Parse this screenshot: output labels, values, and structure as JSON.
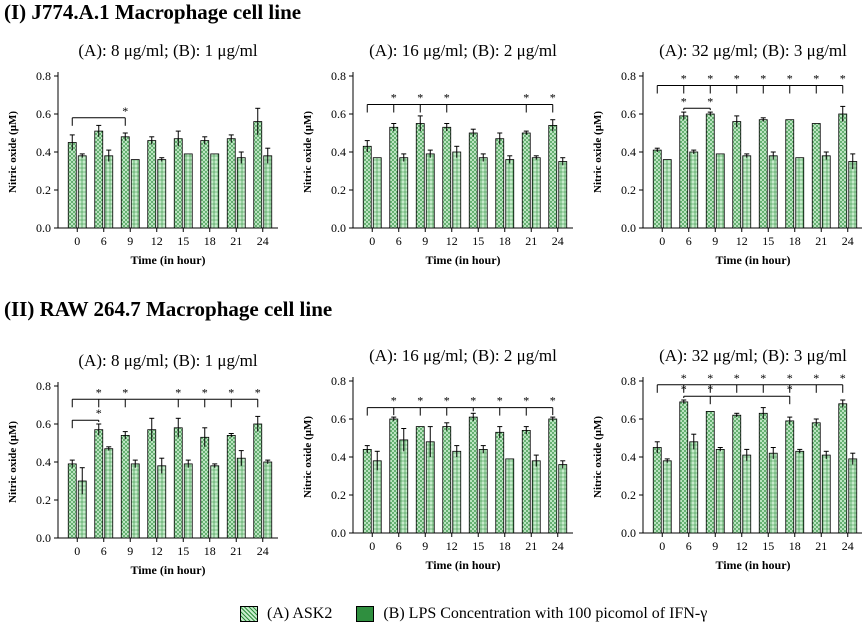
{
  "sections": [
    {
      "title": "(I) J774.A.1 Macrophage cell line"
    },
    {
      "title": "(II) RAW 264.7 Macrophage cell line"
    }
  ],
  "legend": {
    "a_label": "(A) ASK2",
    "b_label": "(B) LPS Concentration with 100 picomol of IFN-γ"
  },
  "colors": {
    "bar_fill": "#c6eccb",
    "grid_line": "#2f8f3f",
    "axis": "#000000"
  },
  "chart_data": [
    {
      "type": "bar",
      "title": "(A): 8 μg/ml; (B): 1 μg/ml",
      "xlabel": "Time (in hour)",
      "ylabel": "Nitric oxide (μM)",
      "categories": [
        "0",
        "6",
        "9",
        "12",
        "15",
        "18",
        "21",
        "24"
      ],
      "ylim": [
        0,
        0.8
      ],
      "yticks": [
        "0.0",
        "0.2",
        "0.4",
        "0.6",
        "0.8"
      ],
      "series": [
        {
          "name": "(A) ASK2",
          "values": [
            0.45,
            0.51,
            0.48,
            0.46,
            0.47,
            0.46,
            0.47,
            0.56
          ],
          "errors": [
            0.04,
            0.03,
            0.02,
            0.02,
            0.04,
            0.02,
            0.02,
            0.07
          ]
        },
        {
          "name": "(B) LPS",
          "values": [
            0.38,
            0.38,
            0.36,
            0.36,
            0.39,
            0.39,
            0.37,
            0.38
          ],
          "errors": [
            0.01,
            0.03,
            0.0,
            0.01,
            0.0,
            0.0,
            0.03,
            0.04
          ]
        }
      ],
      "brackets": [
        {
          "line": 0.58,
          "from": 0,
          "to": [
            2
          ],
          "stars": [
            2
          ]
        }
      ]
    },
    {
      "type": "bar",
      "title": "(A): 16 μg/ml; (B): 2 μg/ml",
      "xlabel": "Time (in hour)",
      "ylabel": "Nitric oxide (μM)",
      "categories": [
        "0",
        "6",
        "9",
        "12",
        "15",
        "18",
        "21",
        "24"
      ],
      "ylim": [
        0,
        0.8
      ],
      "yticks": [
        "0.0",
        "0.2",
        "0.4",
        "0.6",
        "0.8"
      ],
      "series": [
        {
          "name": "(A) ASK2",
          "values": [
            0.43,
            0.53,
            0.55,
            0.53,
            0.5,
            0.47,
            0.5,
            0.54
          ],
          "errors": [
            0.03,
            0.02,
            0.04,
            0.02,
            0.02,
            0.03,
            0.01,
            0.03
          ]
        },
        {
          "name": "(B) LPS",
          "values": [
            0.37,
            0.37,
            0.39,
            0.4,
            0.37,
            0.36,
            0.37,
            0.35
          ],
          "errors": [
            0.0,
            0.02,
            0.02,
            0.03,
            0.02,
            0.02,
            0.01,
            0.02
          ]
        }
      ],
      "brackets": [
        {
          "line": 0.65,
          "from": 0,
          "to": [
            1,
            2,
            3,
            6,
            7
          ],
          "stars": [
            1,
            2,
            3,
            6,
            7
          ]
        }
      ]
    },
    {
      "type": "bar",
      "title": "(A): 32 μg/ml; (B): 3 μg/ml",
      "xlabel": "Time (in hour)",
      "ylabel": "Nitric oxide (μM)",
      "categories": [
        "0",
        "6",
        "9",
        "12",
        "15",
        "18",
        "21",
        "24"
      ],
      "ylim": [
        0,
        0.8
      ],
      "yticks": [
        "0.0",
        "0.2",
        "0.4",
        "0.6",
        "0.8"
      ],
      "series": [
        {
          "name": "(A) ASK2",
          "values": [
            0.41,
            0.59,
            0.6,
            0.56,
            0.57,
            0.57,
            0.55,
            0.6
          ],
          "errors": [
            0.01,
            0.02,
            0.01,
            0.03,
            0.01,
            0.0,
            0.0,
            0.04
          ]
        },
        {
          "name": "(B) LPS",
          "values": [
            0.36,
            0.4,
            0.39,
            0.38,
            0.38,
            0.37,
            0.38,
            0.35
          ],
          "errors": [
            0.0,
            0.01,
            0.0,
            0.01,
            0.02,
            0.0,
            0.02,
            0.04
          ]
        }
      ],
      "brackets": [
        {
          "line": 0.75,
          "from": 0,
          "to": [
            1,
            2,
            3,
            4,
            5,
            6,
            7
          ],
          "stars": [
            1,
            2,
            3,
            4,
            5,
            6,
            7
          ]
        },
        {
          "line": 0.63,
          "from": 1,
          "to": [
            2
          ],
          "stars": [
            1,
            2
          ]
        }
      ]
    },
    {
      "type": "bar",
      "title": "(A): 8 μg/ml; (B): 1 μg/ml",
      "xlabel": "Time (in hour)",
      "ylabel": "Nitric oxide (μM)",
      "categories": [
        "0",
        "6",
        "9",
        "12",
        "15",
        "18",
        "21",
        "24"
      ],
      "ylim": [
        0,
        0.8
      ],
      "yticks": [
        "0.0",
        "0.2",
        "0.4",
        "0.6",
        "0.8"
      ],
      "series": [
        {
          "name": "(A) ASK2",
          "values": [
            0.39,
            0.57,
            0.54,
            0.57,
            0.58,
            0.53,
            0.54,
            0.6
          ],
          "errors": [
            0.02,
            0.03,
            0.02,
            0.06,
            0.05,
            0.05,
            0.01,
            0.04
          ]
        },
        {
          "name": "(B) LPS",
          "values": [
            0.3,
            0.47,
            0.39,
            0.38,
            0.39,
            0.38,
            0.42,
            0.4
          ],
          "errors": [
            0.07,
            0.01,
            0.02,
            0.04,
            0.02,
            0.01,
            0.04,
            0.01
          ]
        }
      ],
      "brackets": [
        {
          "line": 0.73,
          "from": 0,
          "to": [
            1,
            2,
            4,
            5,
            6,
            7
          ],
          "stars": [
            1,
            2,
            4,
            5,
            6,
            7
          ]
        },
        {
          "line": 0.62,
          "from": 0,
          "to": [
            1
          ],
          "stars": [
            1
          ]
        }
      ]
    },
    {
      "type": "bar",
      "title": "(A): 16 μg/ml; (B): 2 μg/ml",
      "xlabel": "Time (in hour)",
      "ylabel": "Nitric oxide (μM)",
      "categories": [
        "0",
        "6",
        "9",
        "12",
        "15",
        "18",
        "21",
        "24"
      ],
      "ylim": [
        0,
        0.8
      ],
      "yticks": [
        "0.0",
        "0.2",
        "0.4",
        "0.6",
        "0.8"
      ],
      "series": [
        {
          "name": "(A) ASK2",
          "values": [
            0.44,
            0.6,
            0.56,
            0.56,
            0.61,
            0.53,
            0.54,
            0.6
          ],
          "errors": [
            0.02,
            0.01,
            0.0,
            0.02,
            0.02,
            0.03,
            0.02,
            0.01
          ]
        },
        {
          "name": "(B) LPS",
          "values": [
            0.38,
            0.49,
            0.48,
            0.43,
            0.44,
            0.39,
            0.38,
            0.36
          ],
          "errors": [
            0.05,
            0.06,
            0.08,
            0.03,
            0.02,
            0.0,
            0.03,
            0.02
          ]
        }
      ],
      "brackets": [
        {
          "line": 0.66,
          "from": 0,
          "to": [
            1,
            2,
            3,
            4,
            5,
            6,
            7
          ],
          "stars": [
            1,
            2,
            3,
            4,
            5,
            6,
            7
          ]
        }
      ]
    },
    {
      "type": "bar",
      "title": "(A): 32 μg/ml; (B): 3 μg/ml",
      "xlabel": "Time (in hour)",
      "ylabel": "Nitric oxide (μM)",
      "categories": [
        "0",
        "6",
        "9",
        "12",
        "15",
        "18",
        "21",
        "24"
      ],
      "ylim": [
        0,
        0.8
      ],
      "yticks": [
        "0.0",
        "0.2",
        "0.4",
        "0.6",
        "0.8"
      ],
      "series": [
        {
          "name": "(A) ASK2",
          "values": [
            0.45,
            0.69,
            0.64,
            0.62,
            0.63,
            0.59,
            0.58,
            0.68
          ],
          "errors": [
            0.03,
            0.01,
            0.0,
            0.01,
            0.03,
            0.02,
            0.02,
            0.02
          ]
        },
        {
          "name": "(B) LPS",
          "values": [
            0.38,
            0.48,
            0.44,
            0.41,
            0.42,
            0.43,
            0.41,
            0.39
          ],
          "errors": [
            0.01,
            0.04,
            0.01,
            0.03,
            0.03,
            0.01,
            0.02,
            0.03
          ]
        }
      ],
      "brackets": [
        {
          "line": 0.78,
          "from": 0,
          "to": [
            1,
            2,
            3,
            4,
            5,
            6,
            7
          ],
          "stars": [
            1,
            2,
            3,
            4,
            5,
            6,
            7
          ]
        },
        {
          "line": 0.72,
          "from": 1,
          "to": [
            2,
            5
          ],
          "stars": [
            1,
            2,
            5
          ]
        }
      ]
    }
  ]
}
